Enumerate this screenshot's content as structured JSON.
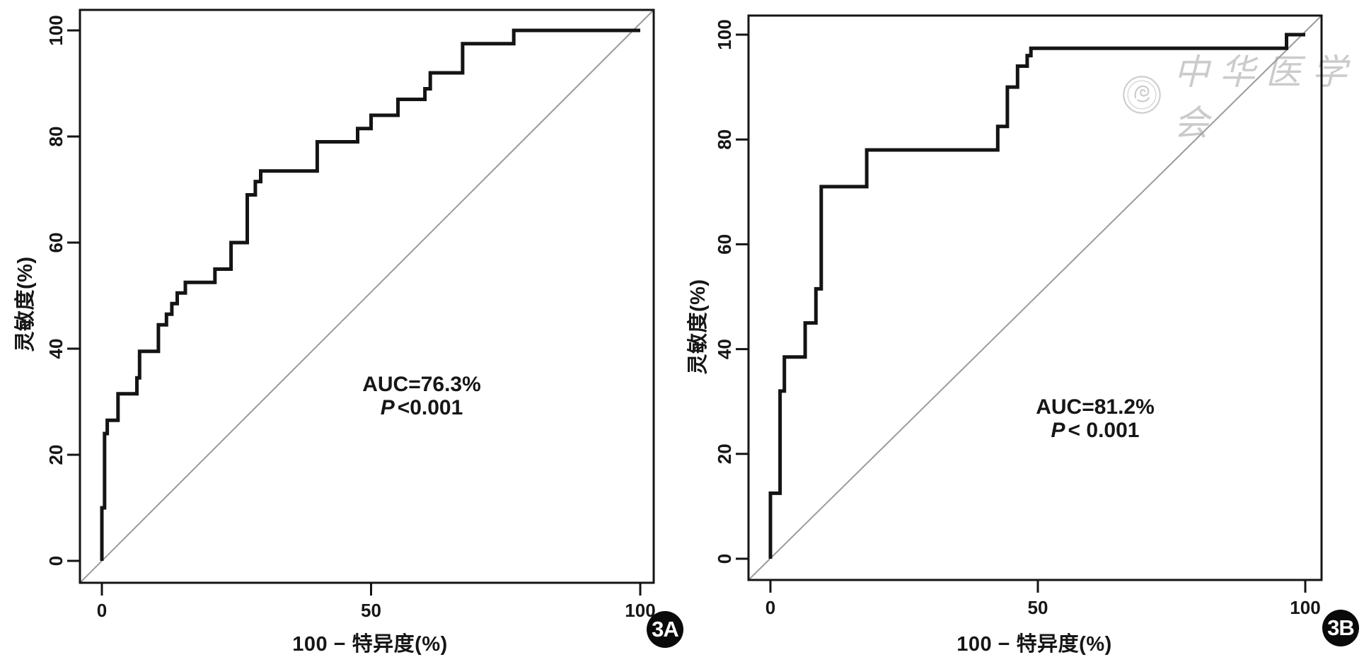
{
  "figure": {
    "background": "#ffffff",
    "watermark": {
      "text": "中华医学会",
      "logo_name": "cma-emblem",
      "color": "#c9c9c9"
    }
  },
  "chart_data": [
    {
      "type": "line",
      "subtype": "roc_step_curve",
      "panel_tag": "3A",
      "title": "",
      "xlabel": "100 − 特异度(%)",
      "ylabel": "灵敏度(%)",
      "xlim": [
        0,
        100
      ],
      "ylim": [
        0,
        100
      ],
      "x_ticks": [
        0,
        50,
        100
      ],
      "y_ticks": [
        0,
        20,
        40,
        60,
        80,
        100
      ],
      "grid": false,
      "legend": "none",
      "annotation": {
        "auc_label": "AUC=76.3%",
        "p_label": "P",
        "p_value": "<0.001"
      },
      "series": [
        {
          "name": "ROC curve",
          "color": "#141414",
          "width": 5,
          "points": [
            [
              0,
              0
            ],
            [
              0,
              10
            ],
            [
              0.5,
              10
            ],
            [
              0.5,
              24
            ],
            [
              1,
              24
            ],
            [
              1,
              26.5
            ],
            [
              3,
              26.5
            ],
            [
              3,
              31.5
            ],
            [
              6.5,
              31.5
            ],
            [
              6.5,
              34.5
            ],
            [
              7,
              34.5
            ],
            [
              7,
              39.5
            ],
            [
              10.5,
              39.5
            ],
            [
              10.5,
              44.5
            ],
            [
              12,
              44.5
            ],
            [
              12,
              46.5
            ],
            [
              13,
              46.5
            ],
            [
              13,
              48.5
            ],
            [
              14,
              48.5
            ],
            [
              14,
              50.5
            ],
            [
              15.5,
              50.5
            ],
            [
              15.5,
              52.5
            ],
            [
              21,
              52.5
            ],
            [
              21,
              55
            ],
            [
              24,
              55
            ],
            [
              24,
              60
            ],
            [
              27,
              60
            ],
            [
              27,
              69
            ],
            [
              28.5,
              69
            ],
            [
              28.5,
              71.5
            ],
            [
              29.5,
              71.5
            ],
            [
              29.5,
              73.5
            ],
            [
              40,
              73.5
            ],
            [
              40,
              79
            ],
            [
              47.5,
              79
            ],
            [
              47.5,
              81.5
            ],
            [
              50,
              81.5
            ],
            [
              50,
              84
            ],
            [
              55,
              84
            ],
            [
              55,
              87
            ],
            [
              60,
              87
            ],
            [
              60,
              89
            ],
            [
              61,
              89
            ],
            [
              61,
              92
            ],
            [
              67,
              92
            ],
            [
              67,
              97.5
            ],
            [
              76.5,
              97.5
            ],
            [
              76.5,
              100
            ],
            [
              100,
              100
            ]
          ]
        },
        {
          "name": "chance diagonal",
          "color": "#9b9b9b",
          "width": 2,
          "points": [
            [
              0,
              0
            ],
            [
              100,
              100
            ]
          ]
        }
      ]
    },
    {
      "type": "line",
      "subtype": "roc_step_curve",
      "panel_tag": "3B",
      "title": "",
      "xlabel": "100 − 特异度(%)",
      "ylabel": "灵敏度(%)",
      "xlim": [
        0,
        100
      ],
      "ylim": [
        0,
        100
      ],
      "x_ticks": [
        0,
        50,
        100
      ],
      "y_ticks": [
        0,
        20,
        40,
        60,
        80,
        100
      ],
      "grid": false,
      "legend": "none",
      "annotation": {
        "auc_label": "AUC=81.2%",
        "p_label": "P",
        "p_value": "< 0.001"
      },
      "series": [
        {
          "name": "ROC curve",
          "color": "#141414",
          "width": 5,
          "points": [
            [
              0,
              0
            ],
            [
              0,
              12.5
            ],
            [
              1.8,
              12.5
            ],
            [
              1.8,
              32
            ],
            [
              2.6,
              32
            ],
            [
              2.6,
              38.5
            ],
            [
              6.5,
              38.5
            ],
            [
              6.5,
              45
            ],
            [
              8.5,
              45
            ],
            [
              8.5,
              51.5
            ],
            [
              9.5,
              51.5
            ],
            [
              9.5,
              71
            ],
            [
              18,
              71
            ],
            [
              18,
              78
            ],
            [
              42.5,
              78
            ],
            [
              42.5,
              82.5
            ],
            [
              44.3,
              82.5
            ],
            [
              44.3,
              90
            ],
            [
              46.2,
              90
            ],
            [
              46.2,
              94
            ],
            [
              48,
              94
            ],
            [
              48,
              96
            ],
            [
              48.7,
              96
            ],
            [
              48.7,
              97.4
            ],
            [
              96.5,
              97.4
            ],
            [
              96.5,
              100
            ],
            [
              100,
              100
            ]
          ]
        },
        {
          "name": "chance diagonal",
          "color": "#9b9b9b",
          "width": 2,
          "points": [
            [
              0,
              0
            ],
            [
              100,
              100
            ]
          ]
        }
      ]
    }
  ]
}
